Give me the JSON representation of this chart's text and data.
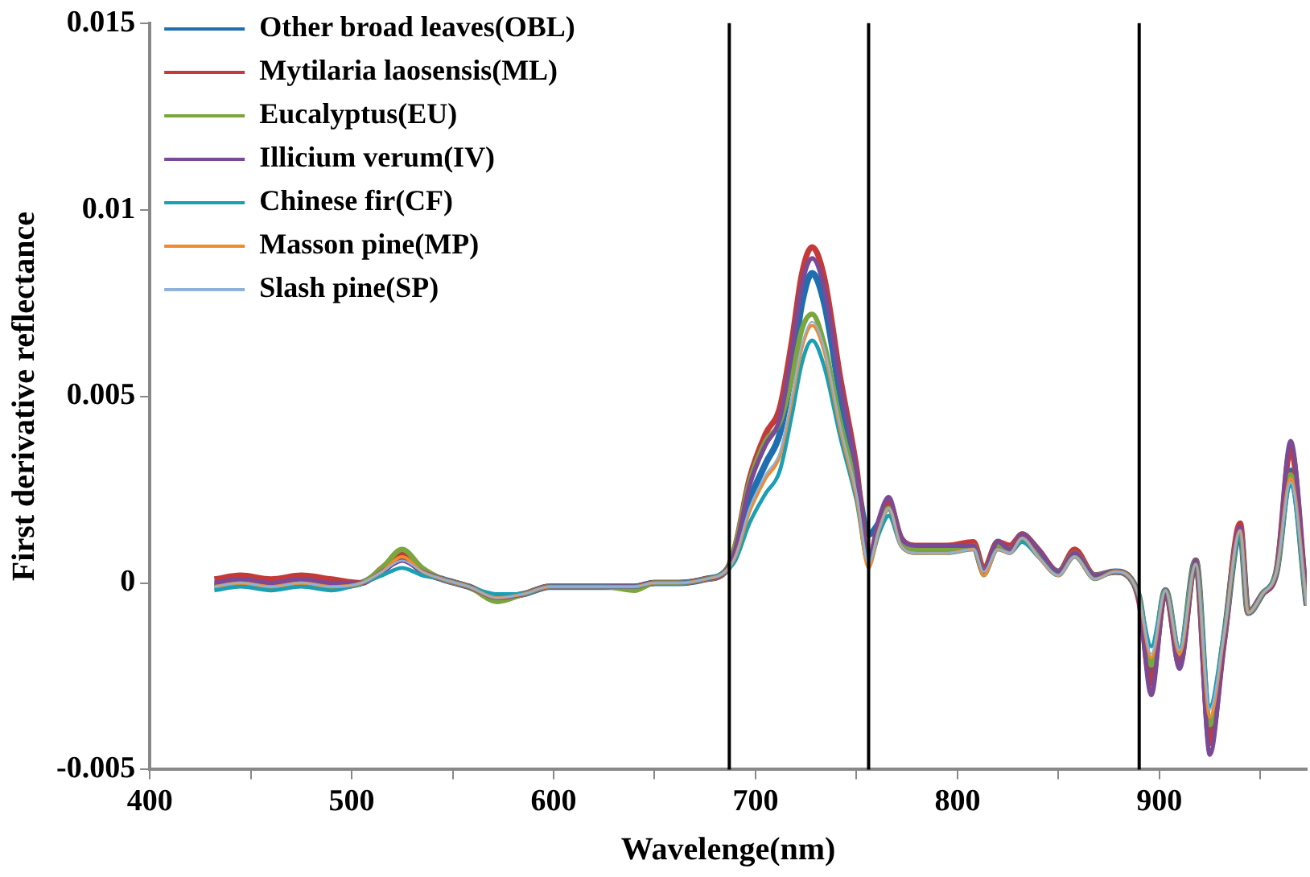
{
  "chart_data": {
    "type": "line",
    "xlabel": "Wavelenge(nm)",
    "ylabel": "First derivative reflectance",
    "x": [
      432,
      445,
      460,
      475,
      490,
      505,
      515,
      525,
      535,
      545,
      558,
      572,
      585,
      598,
      612,
      625,
      640,
      650,
      662,
      675,
      685,
      690,
      697,
      705,
      712,
      718,
      723,
      728,
      734,
      742,
      750,
      756,
      761,
      766,
      772,
      780,
      795,
      808,
      813,
      820,
      826,
      832,
      840,
      850,
      858,
      868,
      878,
      886,
      890,
      896,
      903,
      910,
      918,
      925,
      932,
      940,
      944,
      951,
      958,
      965,
      973
    ],
    "xlim": [
      400,
      973
    ],
    "xticks": [
      400,
      {
        "value": 450,
        "label": null
      },
      500,
      {
        "value": 550,
        "label": null
      },
      600,
      {
        "value": 650,
        "label": null
      },
      700,
      {
        "value": 750,
        "label": null
      },
      800,
      {
        "value": 850,
        "label": null
      },
      900,
      {
        "value": 950,
        "label": null
      }
    ],
    "ylim": [
      -0.005,
      0.015
    ],
    "yticks": [
      -0.005,
      0,
      0.005,
      0.01,
      0.015
    ],
    "grid": false,
    "legend": "top left",
    "marker": "none",
    "line_style": "solid",
    "ref_lines": [
      {
        "axis": "x",
        "value": 687,
        "color": "#000000"
      },
      {
        "axis": "x",
        "value": 756,
        "color": "#000000"
      },
      {
        "axis": "x",
        "value": 890,
        "color": "#000000"
      }
    ],
    "series": [
      {
        "name": "Other broad leaves(OBL)",
        "color": "#1f6eb0",
        "values": [
          -0.0001,
          0,
          -0.0001,
          0,
          -0.0001,
          0,
          0.0003,
          0.0007,
          0.0003,
          0.0001,
          -0.0001,
          -0.0004,
          -0.0003,
          -0.0001,
          -0.0001,
          -0.0001,
          -0.0001,
          0,
          0,
          0.0001,
          0.0003,
          0.0008,
          0.0022,
          0.0032,
          0.004,
          0.0057,
          0.0075,
          0.0083,
          0.0075,
          0.005,
          0.0028,
          0.0013,
          0.0016,
          0.0021,
          0.0012,
          0.0009,
          0.0009,
          0.001,
          0.0003,
          0.0011,
          0.0009,
          0.0013,
          0.0008,
          0.0003,
          0.0008,
          0.0002,
          0.0003,
          0.0001,
          -0.0004,
          -0.0024,
          -0.0002,
          -0.002,
          0.0006,
          -0.004,
          -0.0015,
          0.0014,
          -0.0008,
          -0.0003,
          0.0003,
          0.003,
          -0.0006
        ]
      },
      {
        "name": "Mytilaria laosensis(ML)",
        "color": "#c43a3a",
        "values": [
          0.0001,
          0.0002,
          0.0001,
          0.0002,
          0.0001,
          0,
          0.0004,
          0.0008,
          0.0003,
          0.0001,
          -0.0001,
          -0.0004,
          -0.0003,
          -0.0001,
          -0.0001,
          -0.0001,
          -0.0001,
          0,
          0,
          0.0001,
          0.0003,
          0.001,
          0.0028,
          0.004,
          0.0047,
          0.0065,
          0.0083,
          0.009,
          0.0082,
          0.0055,
          0.0031,
          0.0006,
          0.0016,
          0.0022,
          0.0012,
          0.001,
          0.001,
          0.0011,
          0.0004,
          0.0011,
          0.001,
          0.0013,
          0.0009,
          0.0003,
          0.0009,
          0.0002,
          0.0003,
          0.0001,
          -0.0005,
          -0.0027,
          -0.0002,
          -0.0022,
          0.0006,
          -0.0043,
          -0.0016,
          0.0016,
          -0.0008,
          -0.0003,
          0.0003,
          0.0036,
          -0.0006
        ]
      },
      {
        "name": "Eucalyptus(EU)",
        "color": "#7aa63d",
        "values": [
          -0.0001,
          0,
          -0.0001,
          0,
          -0.0001,
          0,
          0.0004,
          0.0009,
          0.0004,
          0.0001,
          -0.0001,
          -0.0005,
          -0.0003,
          -0.0001,
          -0.0001,
          -0.0001,
          -0.0002,
          0,
          0,
          0.0001,
          0.0003,
          0.001,
          0.0027,
          0.0038,
          0.0043,
          0.0055,
          0.0068,
          0.0072,
          0.0064,
          0.0043,
          0.0025,
          0.0006,
          0.0015,
          0.002,
          0.0011,
          0.0009,
          0.0009,
          0.001,
          0.0003,
          0.001,
          0.0009,
          0.0012,
          0.0008,
          0.0003,
          0.0008,
          0.0002,
          0.0003,
          0.0001,
          -0.0004,
          -0.0022,
          -0.0002,
          -0.0019,
          0.0006,
          -0.0038,
          -0.0015,
          0.0014,
          -0.0008,
          -0.0003,
          0.0003,
          0.0029,
          -0.0006
        ]
      },
      {
        "name": "Illicium verum(IV)",
        "color": "#7b4a95",
        "values": [
          0,
          0.0001,
          0,
          0.0001,
          0,
          0,
          0.0003,
          0.0006,
          0.0003,
          0.0001,
          -0.0001,
          -0.0004,
          -0.0003,
          -0.0001,
          -0.0001,
          -0.0001,
          -0.0001,
          0,
          0,
          0.0001,
          0.0003,
          0.0009,
          0.0026,
          0.0037,
          0.0044,
          0.0062,
          0.008,
          0.0087,
          0.0079,
          0.0053,
          0.003,
          0.0006,
          0.0017,
          0.0023,
          0.0012,
          0.001,
          0.001,
          0.001,
          0.0003,
          0.0011,
          0.0009,
          0.0013,
          0.0009,
          0.0003,
          0.0008,
          0.0002,
          0.0003,
          0.0001,
          -0.0005,
          -0.003,
          -0.0002,
          -0.0023,
          0.0006,
          -0.0046,
          -0.0016,
          0.0015,
          -0.0008,
          -0.0003,
          0.0003,
          0.0038,
          -0.0006
        ]
      },
      {
        "name": "Chinese fir(CF)",
        "color": "#1b9fb3",
        "values": [
          -0.0002,
          -0.0001,
          -0.0002,
          -0.0001,
          -0.0002,
          0,
          0.0002,
          0.0004,
          0.0002,
          0.0001,
          -0.0001,
          -0.0003,
          -0.0003,
          -0.0001,
          -0.0001,
          -0.0001,
          -0.0001,
          0,
          0,
          0.0001,
          0.0003,
          0.0006,
          0.0016,
          0.0024,
          0.003,
          0.0045,
          0.0059,
          0.0065,
          0.0058,
          0.0039,
          0.0022,
          0.0005,
          0.0013,
          0.0018,
          0.001,
          0.0008,
          0.0008,
          0.0009,
          0.0002,
          0.0009,
          0.0008,
          0.0011,
          0.0007,
          0.0002,
          0.0007,
          0.0001,
          0.0003,
          0.0001,
          -0.0004,
          -0.0017,
          -0.0002,
          -0.0018,
          0.0005,
          -0.0033,
          -0.0013,
          0.0013,
          -0.0008,
          -0.0003,
          0.0003,
          0.0026,
          -0.0006
        ]
      },
      {
        "name": "Masson pine(MP)",
        "color": "#f08a2c",
        "values": [
          -0.0001,
          0,
          -0.0001,
          0,
          -0.0001,
          0,
          0.0003,
          0.0007,
          0.0003,
          0.0001,
          -0.0001,
          -0.0004,
          -0.0003,
          -0.0001,
          -0.0001,
          -0.0001,
          -0.0001,
          0,
          0,
          0.0001,
          0.0003,
          0.0007,
          0.0019,
          0.0028,
          0.0034,
          0.0049,
          0.0063,
          0.0069,
          0.0062,
          0.0041,
          0.0023,
          0.0004,
          0.0014,
          0.002,
          0.001,
          0.0008,
          0.0008,
          0.0009,
          0.0002,
          0.0009,
          0.0008,
          0.0012,
          0.0007,
          0.0002,
          0.0007,
          0.0001,
          0.0003,
          0.0001,
          -0.0004,
          -0.002,
          -0.0002,
          -0.0019,
          0.0005,
          -0.0036,
          -0.0014,
          0.0014,
          -0.0008,
          -0.0003,
          0.0003,
          0.0028,
          -0.0006
        ]
      },
      {
        "name": "Slash pine(SP)",
        "color": "#8fb1da",
        "values": [
          -0.0001,
          0,
          -0.0001,
          0,
          -0.0001,
          0,
          0.0003,
          0.0006,
          0.0003,
          0.0001,
          -0.0001,
          -0.0004,
          -0.0003,
          -0.0001,
          -0.0001,
          -0.0001,
          -0.0001,
          0,
          0,
          0.0001,
          0.0003,
          0.0007,
          0.002,
          0.0029,
          0.0035,
          0.005,
          0.0064,
          0.007,
          0.0063,
          0.0042,
          0.0024,
          0.0005,
          0.0014,
          0.002,
          0.001,
          0.0008,
          0.0008,
          0.0009,
          0.0003,
          0.0009,
          0.0008,
          0.0012,
          0.0007,
          0.0002,
          0.0007,
          0.0001,
          0.0003,
          0.0001,
          -0.0004,
          -0.0019,
          -0.0002,
          -0.0018,
          0.0005,
          -0.0034,
          -0.0014,
          0.0014,
          -0.0008,
          -0.0003,
          0.0003,
          0.0027,
          -0.0006
        ]
      }
    ]
  }
}
